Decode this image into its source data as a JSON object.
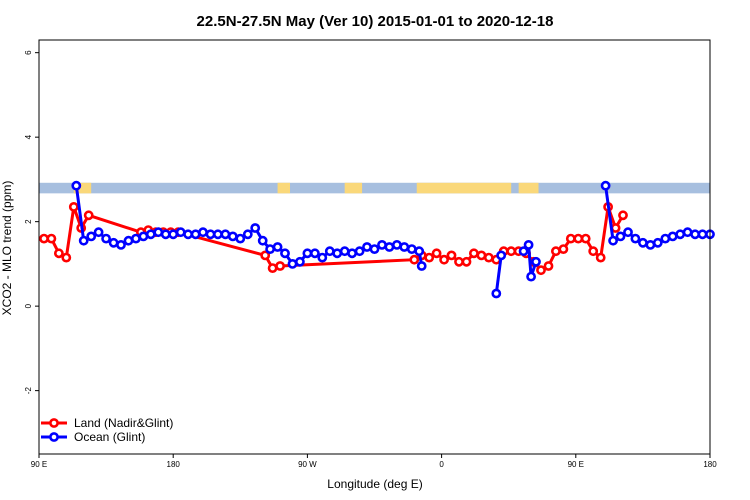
{
  "chart_data": {
    "type": "line",
    "title": "22.5N-27.5N May (Ver 10)   2015-01-01 to 2020-12-18",
    "xlabel": "Longitude (deg E)",
    "ylabel": "XCO2 - MLO trend (ppm)",
    "xlim": [
      -90,
      180
    ],
    "ylim": [
      -3.5,
      6.3
    ],
    "x_ticks": [
      {
        "value": -90,
        "label": "90 E"
      },
      {
        "value": -36,
        "label": "180"
      },
      {
        "value": 18,
        "label": "90 W"
      },
      {
        "value": 72,
        "label": "0"
      },
      {
        "value": 126,
        "label": "90 E"
      },
      {
        "value": 180,
        "label": "180"
      }
    ],
    "y_ticks": [
      {
        "value": -2,
        "label": "-2"
      },
      {
        "value": 0,
        "label": "0"
      },
      {
        "value": 2,
        "label": "2"
      },
      {
        "value": 4,
        "label": "4"
      },
      {
        "value": 6,
        "label": "6"
      }
    ],
    "grid": false,
    "legend_position": "bottom-left",
    "land_ocean_band": {
      "ymin": 2.67,
      "ymax": 2.92,
      "ocean_color": "#a7bfdf",
      "land_color": "#fad87a",
      "land_segments": [
        [
          -76,
          -69
        ],
        [
          6,
          11
        ],
        [
          33,
          40
        ],
        [
          62,
          100
        ],
        [
          103,
          111
        ]
      ]
    },
    "series": [
      {
        "name": "Land (Nadir&Glint)",
        "color": "#ff0000",
        "points": [
          [
            -88,
            1.6
          ],
          [
            -85,
            1.6
          ],
          [
            -82,
            1.25
          ],
          [
            -79,
            1.15
          ],
          [
            -76,
            2.35
          ],
          [
            -73,
            1.85
          ],
          [
            -70,
            2.15
          ],
          [
            -49,
            1.75
          ],
          [
            -46,
            1.8
          ],
          [
            -43,
            1.75
          ],
          [
            -40,
            1.75
          ],
          [
            -37,
            1.75
          ],
          [
            -34,
            1.75
          ],
          [
            1,
            1.2
          ],
          [
            4,
            0.9
          ],
          [
            7,
            0.95
          ],
          [
            61,
            1.1
          ],
          [
            64,
            1.2
          ],
          [
            67,
            1.15
          ],
          [
            70,
            1.25
          ],
          [
            73,
            1.1
          ],
          [
            76,
            1.2
          ],
          [
            79,
            1.05
          ],
          [
            82,
            1.05
          ],
          [
            85,
            1.25
          ],
          [
            88,
            1.2
          ],
          [
            91,
            1.15
          ],
          [
            94,
            1.1
          ],
          [
            97,
            1.3
          ],
          [
            100,
            1.3
          ],
          [
            103,
            1.3
          ],
          [
            106,
            1.25
          ],
          [
            109,
            1.05
          ],
          [
            112,
            0.85
          ],
          [
            115,
            0.95
          ],
          [
            118,
            1.3
          ],
          [
            121,
            1.35
          ],
          [
            124,
            1.6
          ],
          [
            127,
            1.6
          ],
          [
            130,
            1.6
          ],
          [
            133,
            1.3
          ],
          [
            136,
            1.15
          ],
          [
            139,
            2.35
          ],
          [
            142,
            1.85
          ],
          [
            145,
            2.15
          ]
        ]
      },
      {
        "name": "Ocean (Glint)",
        "color": "#0000ff",
        "points": [
          [
            -75,
            2.85
          ],
          [
            -72,
            1.55
          ],
          [
            -69,
            1.65
          ],
          [
            -66,
            1.75
          ],
          [
            -63,
            1.6
          ],
          [
            -60,
            1.5
          ],
          [
            -57,
            1.45
          ],
          [
            -54,
            1.55
          ],
          [
            -51,
            1.6
          ],
          [
            -48,
            1.65
          ],
          [
            -45,
            1.7
          ],
          [
            -42,
            1.75
          ],
          [
            -39,
            1.7
          ],
          [
            -36,
            1.7
          ],
          [
            -33,
            1.75
          ],
          [
            -30,
            1.7
          ],
          [
            -27,
            1.7
          ],
          [
            -24,
            1.75
          ],
          [
            -21,
            1.7
          ],
          [
            -18,
            1.7
          ],
          [
            -15,
            1.7
          ],
          [
            -12,
            1.65
          ],
          [
            -9,
            1.6
          ],
          [
            -6,
            1.7
          ],
          [
            -3,
            1.85
          ],
          [
            0,
            1.55
          ],
          [
            3,
            1.35
          ],
          [
            6,
            1.4
          ],
          [
            9,
            1.25
          ],
          [
            12,
            1.0
          ],
          [
            15,
            1.05
          ],
          [
            18,
            1.25
          ],
          [
            21,
            1.25
          ],
          [
            24,
            1.15
          ],
          [
            27,
            1.3
          ],
          [
            30,
            1.25
          ],
          [
            33,
            1.3
          ],
          [
            36,
            1.25
          ],
          [
            39,
            1.3
          ],
          [
            42,
            1.4
          ],
          [
            45,
            1.35
          ],
          [
            48,
            1.45
          ],
          [
            51,
            1.4
          ],
          [
            54,
            1.45
          ],
          [
            57,
            1.4
          ],
          [
            60,
            1.35
          ],
          [
            63,
            1.3
          ],
          [
            64,
            0.95
          ],
          [
            null,
            null
          ],
          [
            94,
            0.3
          ],
          [
            96,
            1.2
          ],
          [
            null,
            null
          ],
          [
            105,
            1.3
          ],
          [
            107,
            1.45
          ],
          [
            108,
            0.7
          ],
          [
            110,
            1.05
          ],
          [
            null,
            null
          ],
          [
            138,
            2.85
          ],
          [
            141,
            1.55
          ],
          [
            144,
            1.65
          ],
          [
            147,
            1.75
          ],
          [
            150,
            1.6
          ],
          [
            153,
            1.5
          ],
          [
            156,
            1.45
          ],
          [
            159,
            1.5
          ],
          [
            162,
            1.6
          ],
          [
            165,
            1.65
          ],
          [
            168,
            1.7
          ],
          [
            171,
            1.75
          ],
          [
            174,
            1.7
          ],
          [
            177,
            1.7
          ],
          [
            180,
            1.7
          ]
        ]
      }
    ]
  }
}
